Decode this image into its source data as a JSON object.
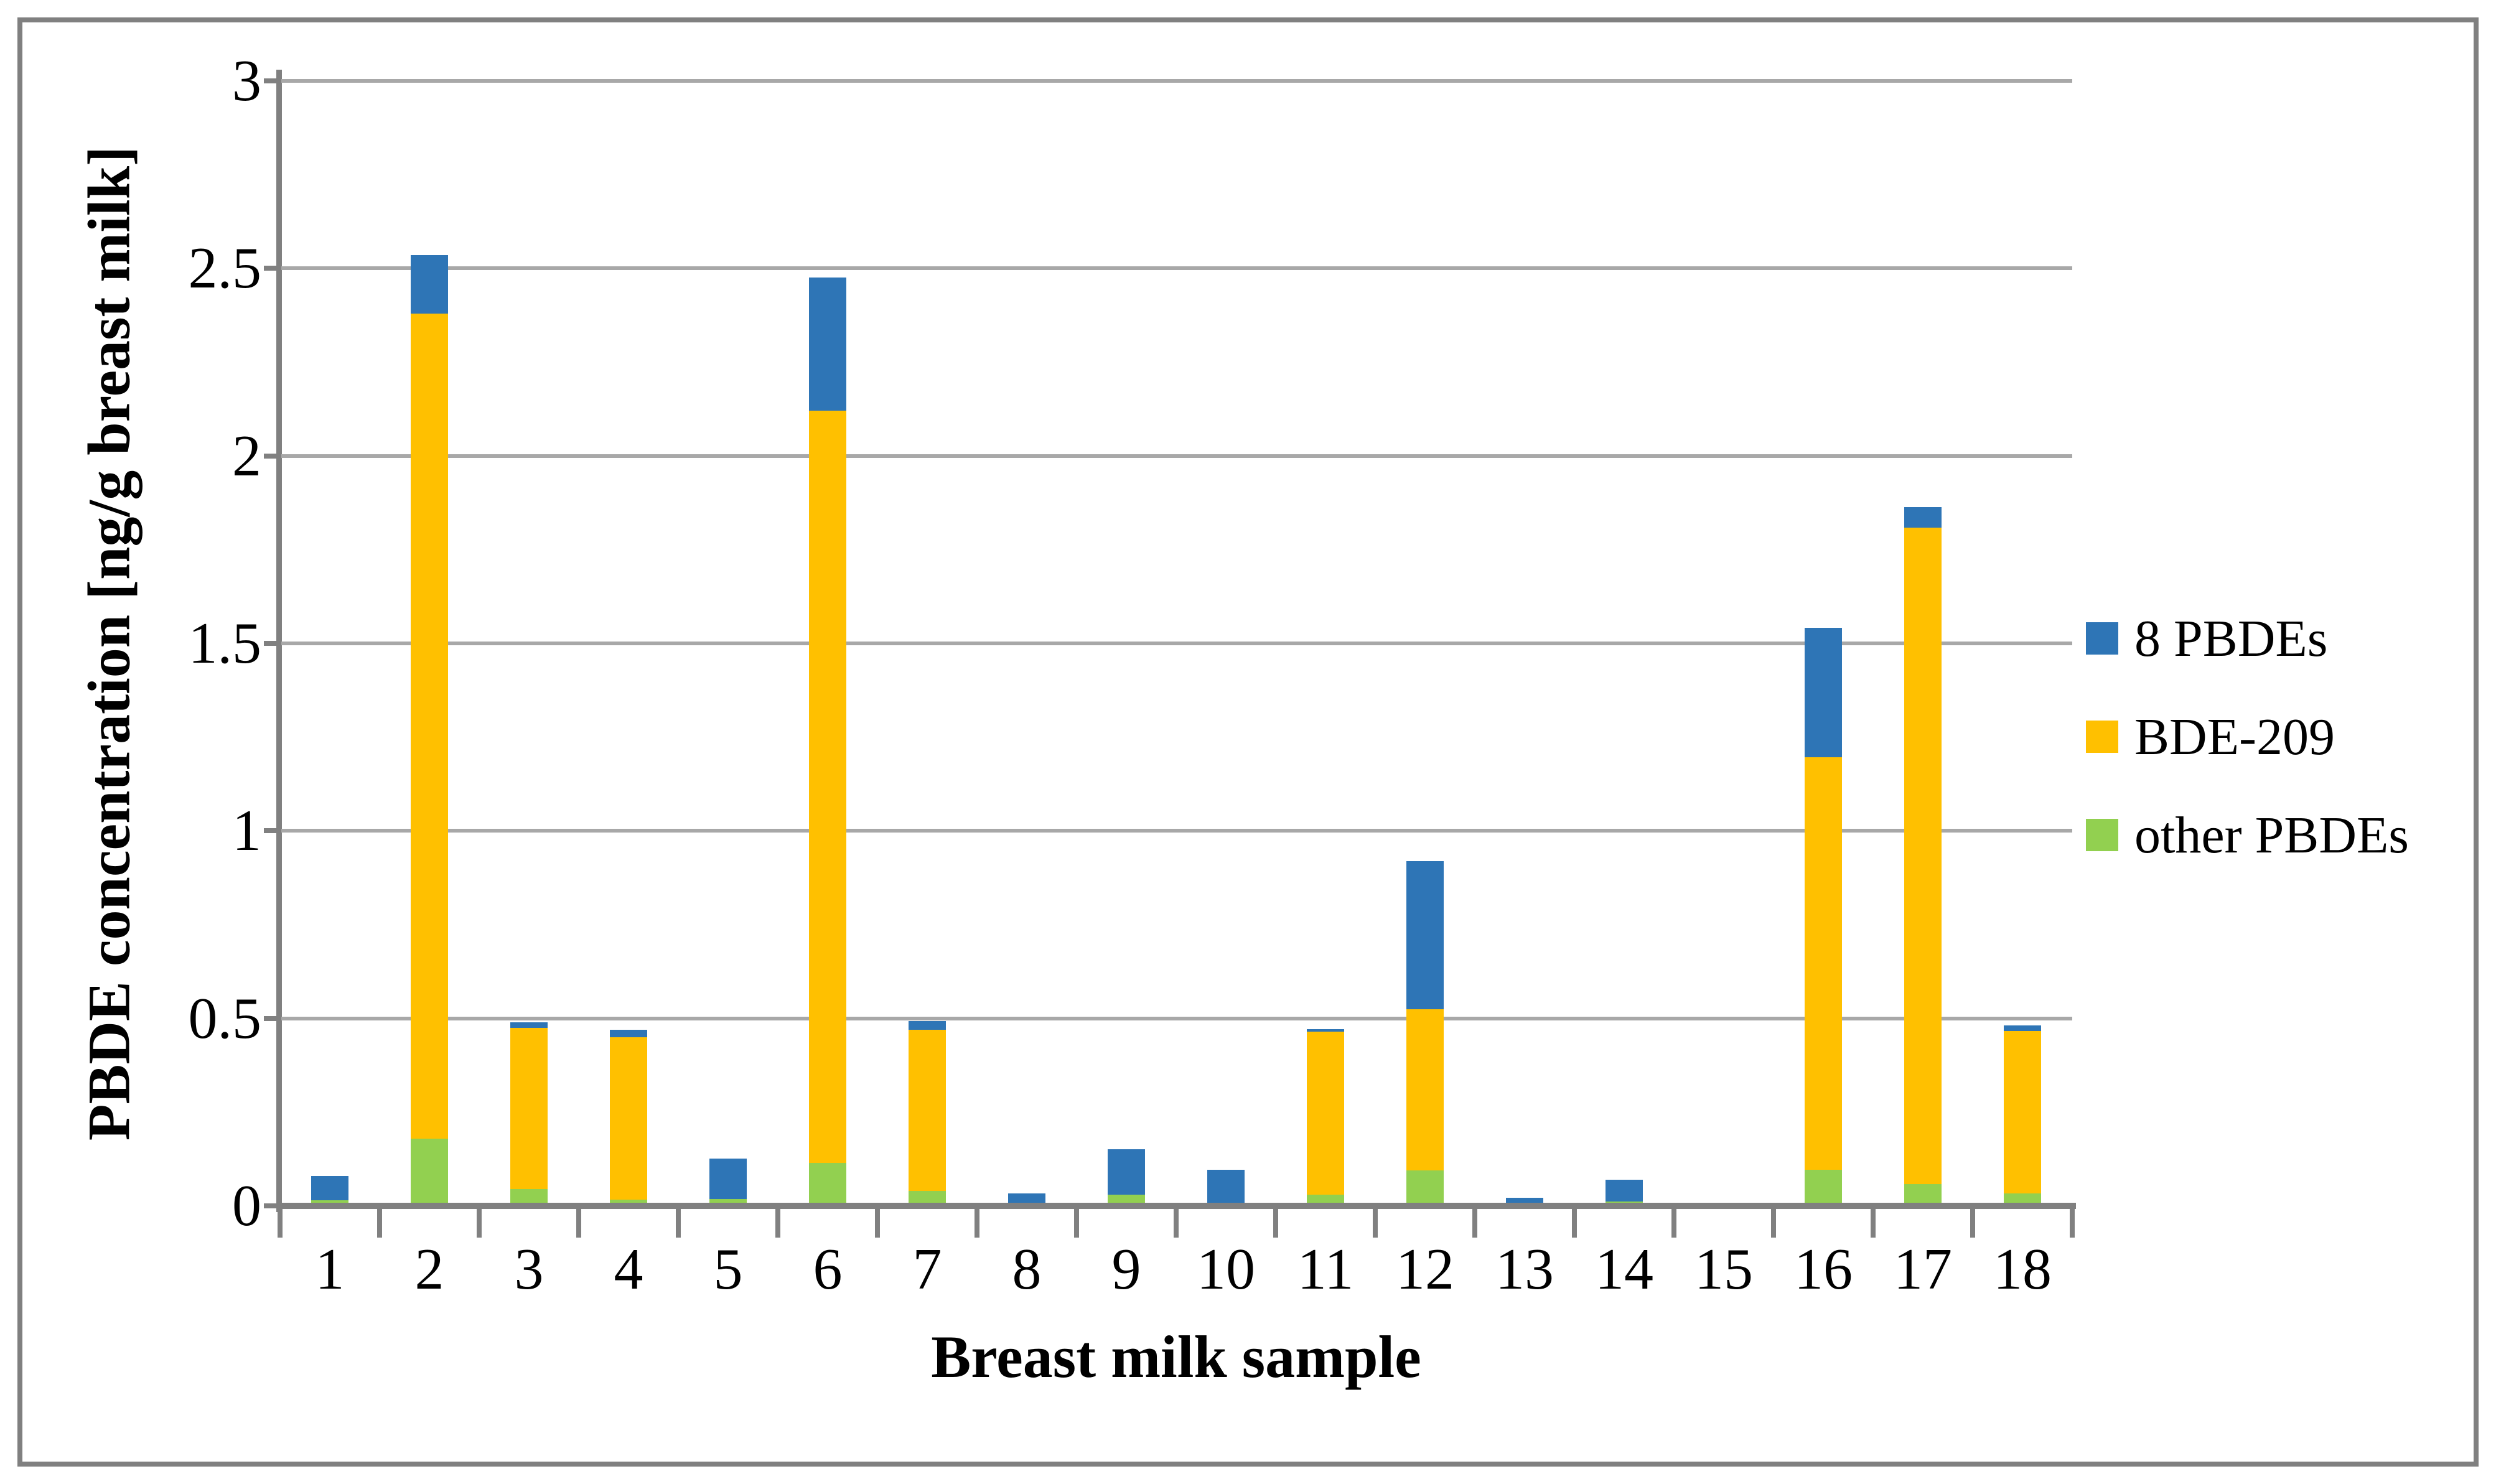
{
  "chart_data": {
    "type": "bar",
    "stacked": true,
    "title": "",
    "xlabel": "Breast milk sample",
    "ylabel": "PBDE concentration [ng/g breast milk]",
    "categories": [
      "1",
      "2",
      "3",
      "4",
      "5",
      "6",
      "7",
      "8",
      "9",
      "10",
      "11",
      "12",
      "13",
      "14",
      "15",
      "16",
      "17",
      "18"
    ],
    "series": [
      {
        "name": "other PBDEs",
        "color": "#92D050",
        "values": [
          0.015,
          0.18,
          0.044,
          0.017,
          0.019,
          0.115,
          0.04,
          0.006,
          0.03,
          0.008,
          0.03,
          0.095,
          0.0,
          0.012,
          0.0,
          0.097,
          0.058,
          0.033
        ]
      },
      {
        "name": "BDE-209",
        "color": "#FFC000",
        "values": [
          0.0,
          2.2,
          0.43,
          0.432,
          0.0,
          2.005,
          0.43,
          0.0,
          0.0,
          0.0,
          0.435,
          0.43,
          0.0,
          0.0,
          0.0,
          1.1,
          1.75,
          0.434
        ]
      },
      {
        "name": "8 PBDEs",
        "color": "#2E75B6",
        "values": [
          0.065,
          0.155,
          0.016,
          0.021,
          0.107,
          0.355,
          0.022,
          0.027,
          0.121,
          0.088,
          0.006,
          0.395,
          0.022,
          0.058,
          0.0,
          0.345,
          0.055,
          0.015
        ]
      }
    ],
    "stack_order": "bottom to top: other PBDEs, BDE-209, 8 PBDEs",
    "legend_order": [
      "8 PBDEs",
      "BDE-209",
      "other PBDEs"
    ],
    "legend_position": "right",
    "ylim": [
      0,
      3
    ],
    "yticks": [
      "0",
      "0.5",
      "1",
      "1.5",
      "2",
      "2.5",
      "3"
    ],
    "grid": true
  },
  "palette": {
    "gridline": "#A8A8A8",
    "axis": "#808080",
    "figure_border": "#808080",
    "background": "#FFFFFF"
  }
}
